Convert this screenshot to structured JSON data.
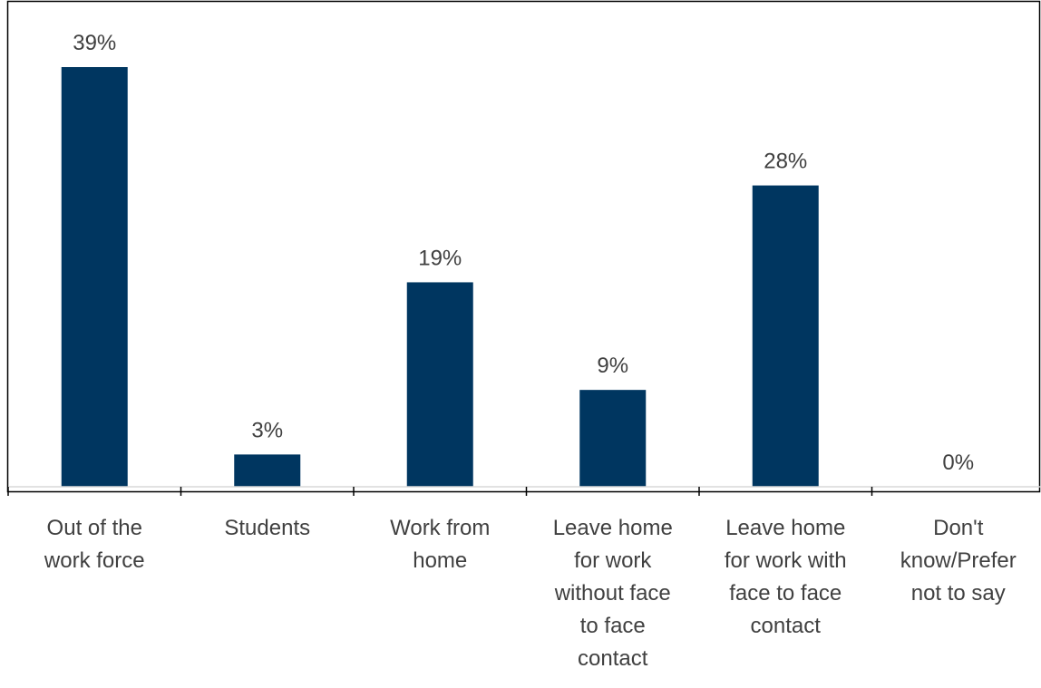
{
  "chart_data": {
    "type": "bar",
    "categories": [
      [
        "Out of the",
        "work force"
      ],
      [
        "Students"
      ],
      [
        "Work from",
        "home"
      ],
      [
        "Leave home",
        "for work",
        "without face",
        "to face",
        "contact"
      ],
      [
        "Leave home",
        "for work with",
        "face to face",
        "contact"
      ],
      [
        "Don't",
        "know/Prefer",
        "not to say"
      ]
    ],
    "values": [
      39,
      3,
      19,
      9,
      28,
      0
    ],
    "value_labels": [
      "39%",
      "3%",
      "19%",
      "9%",
      "28%",
      "0%"
    ],
    "ylim": [
      0,
      39
    ],
    "bar_color": "#003660",
    "text_color": "#404040",
    "grid": false,
    "legend": "none"
  }
}
